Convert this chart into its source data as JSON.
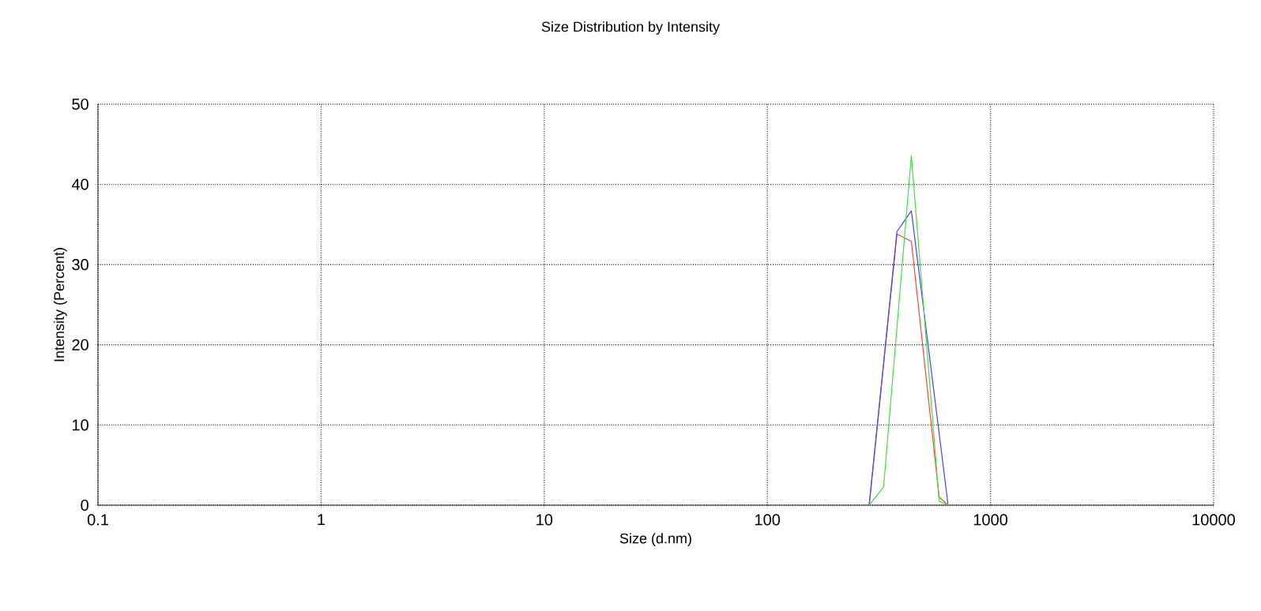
{
  "chart_data": {
    "type": "line",
    "title": "Size Distribution by Intensity",
    "xlabel": "Size (d.nm)",
    "ylabel": "Intensity (Percent)",
    "log": "x",
    "grid": true,
    "line_style": "solid",
    "xlim": [
      0.1,
      10000
    ],
    "xticks": [
      0.1,
      1,
      10,
      100,
      1000,
      10000
    ],
    "ylim": [
      0,
      50
    ],
    "yticks": [
      0,
      10,
      20,
      30,
      40,
      50
    ],
    "series": [
      {
        "color": "#ff4040",
        "x": [
          286,
          381,
          442,
          589,
          646
        ],
        "values": [
          0,
          33.8,
          32.9,
          1.0,
          0
        ]
      },
      {
        "color": "#4040ff",
        "x": [
          286,
          381,
          442,
          589,
          646
        ],
        "values": [
          0,
          34.1,
          36.7,
          null,
          0
        ]
      },
      {
        "color": "#40e040",
        "x": [
          286,
          332,
          442,
          589,
          646
        ],
        "values": [
          0,
          2.3,
          43.6,
          0.5,
          0
        ]
      }
    ]
  }
}
